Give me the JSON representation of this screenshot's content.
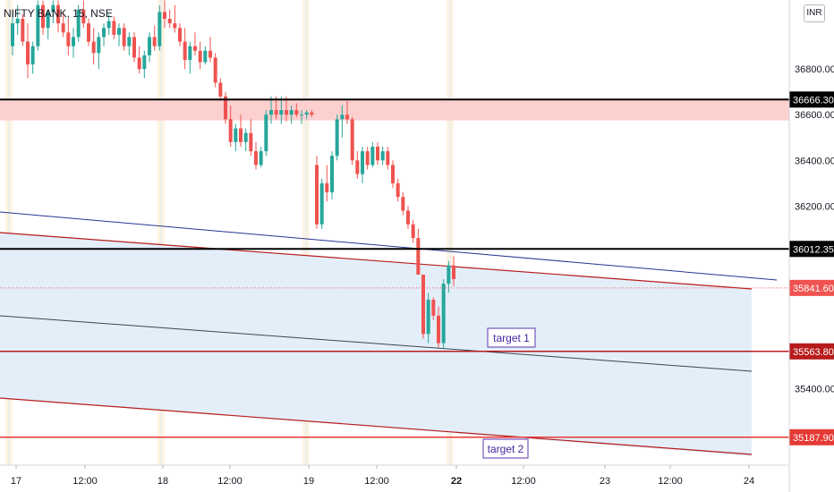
{
  "header": {
    "symbol": "NIFTY BANK, 15, NSE",
    "currency": "INR"
  },
  "chart_data": {
    "type": "candlestick",
    "ylim": [
      35130,
      37100
    ],
    "y_ticks": [
      36800,
      36600,
      36400,
      36200,
      35400
    ],
    "x_ticks": [
      "17",
      "12:00",
      "18",
      "12:00",
      "19",
      "12:00",
      "22",
      "12:00",
      "23",
      "12:00",
      "24"
    ],
    "levels": [
      {
        "value": 36666.3,
        "label": "36666.30",
        "color": "#000000"
      },
      {
        "value": 36012.35,
        "label": "36012.35",
        "color": "#000000"
      },
      {
        "value": 35841.6,
        "label": "35841.60",
        "color": "#ef5350"
      },
      {
        "value": 35563.8,
        "label": "35563.80",
        "color": "#b71c1c"
      },
      {
        "value": 35187.9,
        "label": "35187.90",
        "color": "#e53935"
      }
    ],
    "zone": {
      "from": 36666.3,
      "to": 36575,
      "color": "#fdd0d0"
    },
    "annotations": [
      "target 1",
      "target 2"
    ],
    "candles": [
      [
        36900,
        37050,
        36860,
        37000
      ],
      [
        37000,
        37080,
        36950,
        37020
      ],
      [
        37020,
        37040,
        36900,
        36920
      ],
      [
        36920,
        37000,
        36760,
        36820
      ],
      [
        36820,
        36920,
        36780,
        36900
      ],
      [
        36900,
        37100,
        36880,
        37080
      ],
      [
        37080,
        37100,
        36950,
        36980
      ],
      [
        36980,
        37060,
        36930,
        37050
      ],
      [
        37050,
        37100,
        37000,
        37080
      ],
      [
        37080,
        37100,
        36960,
        37000
      ],
      [
        37000,
        37050,
        36940,
        36960
      ],
      [
        36960,
        37020,
        36860,
        36900
      ],
      [
        36900,
        36980,
        36850,
        36940
      ],
      [
        36940,
        37080,
        36920,
        37060
      ],
      [
        37060,
        37100,
        36980,
        37000
      ],
      [
        37000,
        37020,
        36900,
        36920
      ],
      [
        36920,
        36980,
        36820,
        36870
      ],
      [
        36870,
        36960,
        36800,
        36940
      ],
      [
        36940,
        37000,
        36900,
        36980
      ],
      [
        36980,
        37040,
        36950,
        37010
      ],
      [
        37010,
        37030,
        36930,
        36950
      ],
      [
        36950,
        37000,
        36900,
        36980
      ],
      [
        36980,
        37000,
        36880,
        36900
      ],
      [
        36900,
        36960,
        36860,
        36940
      ],
      [
        36940,
        36960,
        36830,
        36850
      ],
      [
        36850,
        36900,
        36780,
        36800
      ],
      [
        36800,
        36880,
        36760,
        36860
      ],
      [
        36860,
        36960,
        36830,
        36940
      ],
      [
        36940,
        36990,
        36880,
        36900
      ],
      [
        36900,
        37080,
        36880,
        37050
      ],
      [
        37050,
        37100,
        36980,
        37020
      ],
      [
        37020,
        37060,
        36980,
        37000
      ],
      [
        37000,
        37080,
        36960,
        36980
      ],
      [
        36980,
        37000,
        36900,
        36920
      ],
      [
        36920,
        36980,
        36800,
        36840
      ],
      [
        36840,
        36920,
        36780,
        36900
      ],
      [
        36900,
        36960,
        36860,
        36880
      ],
      [
        36880,
        36920,
        36800,
        36830
      ],
      [
        36830,
        36900,
        36820,
        36880
      ],
      [
        36880,
        36940,
        36830,
        36850
      ],
      [
        36850,
        36870,
        36720,
        36740
      ],
      [
        36740,
        36760,
        36660,
        36680
      ],
      [
        36680,
        36700,
        36560,
        36580
      ],
      [
        36580,
        36640,
        36460,
        36480
      ],
      [
        36480,
        36560,
        36440,
        36540
      ],
      [
        36540,
        36600,
        36460,
        36480
      ],
      [
        36480,
        36540,
        36440,
        36520
      ],
      [
        36520,
        36580,
        36420,
        36440
      ],
      [
        36440,
        36480,
        36360,
        36380
      ],
      [
        36380,
        36460,
        36370,
        36440
      ],
      [
        36440,
        36620,
        36420,
        36600
      ],
      [
        36600,
        36680,
        36560,
        36620
      ],
      [
        36620,
        36680,
        36580,
        36600
      ],
      [
        36600,
        36680,
        36560,
        36620
      ],
      [
        36620,
        36680,
        36570,
        36600
      ],
      [
        36600,
        36640,
        36560,
        36620
      ],
      [
        36620,
        36650,
        36590,
        36600
      ],
      [
        36600,
        36620,
        36560,
        36600
      ],
      [
        36600,
        36620,
        36580,
        36610
      ],
      [
        36610,
        36620,
        36590,
        36600
      ],
      [
        36380,
        36420,
        36100,
        36120
      ],
      [
        36120,
        36320,
        36100,
        36300
      ],
      [
        36300,
        36380,
        36220,
        36260
      ],
      [
        36260,
        36440,
        36230,
        36420
      ],
      [
        36420,
        36600,
        36400,
        36580
      ],
      [
        36580,
        36640,
        36500,
        36600
      ],
      [
        36600,
        36660,
        36560,
        36580
      ],
      [
        36580,
        36590,
        36380,
        36400
      ],
      [
        36400,
        36440,
        36320,
        36340
      ],
      [
        36340,
        36460,
        36300,
        36440
      ],
      [
        36440,
        36460,
        36360,
        36380
      ],
      [
        36380,
        36480,
        36370,
        36460
      ],
      [
        36460,
        36480,
        36380,
        36400
      ],
      [
        36400,
        36460,
        36380,
        36440
      ],
      [
        36440,
        36460,
        36360,
        36380
      ],
      [
        36380,
        36400,
        36280,
        36300
      ],
      [
        36300,
        36320,
        36220,
        36240
      ],
      [
        36240,
        36260,
        36160,
        36180
      ],
      [
        36180,
        36200,
        36100,
        36120
      ],
      [
        36120,
        36140,
        36040,
        36060
      ],
      [
        36060,
        36100,
        35900,
        35900
      ],
      [
        35900,
        35900,
        35620,
        35640
      ],
      [
        35640,
        35820,
        35600,
        35790
      ],
      [
        35790,
        35800,
        35700,
        35720
      ],
      [
        35720,
        35760,
        35580,
        35600
      ],
      [
        35600,
        35880,
        35580,
        35860
      ],
      [
        35860,
        35960,
        35820,
        35940
      ],
      [
        35940,
        35980,
        35850,
        35880
      ]
    ]
  }
}
